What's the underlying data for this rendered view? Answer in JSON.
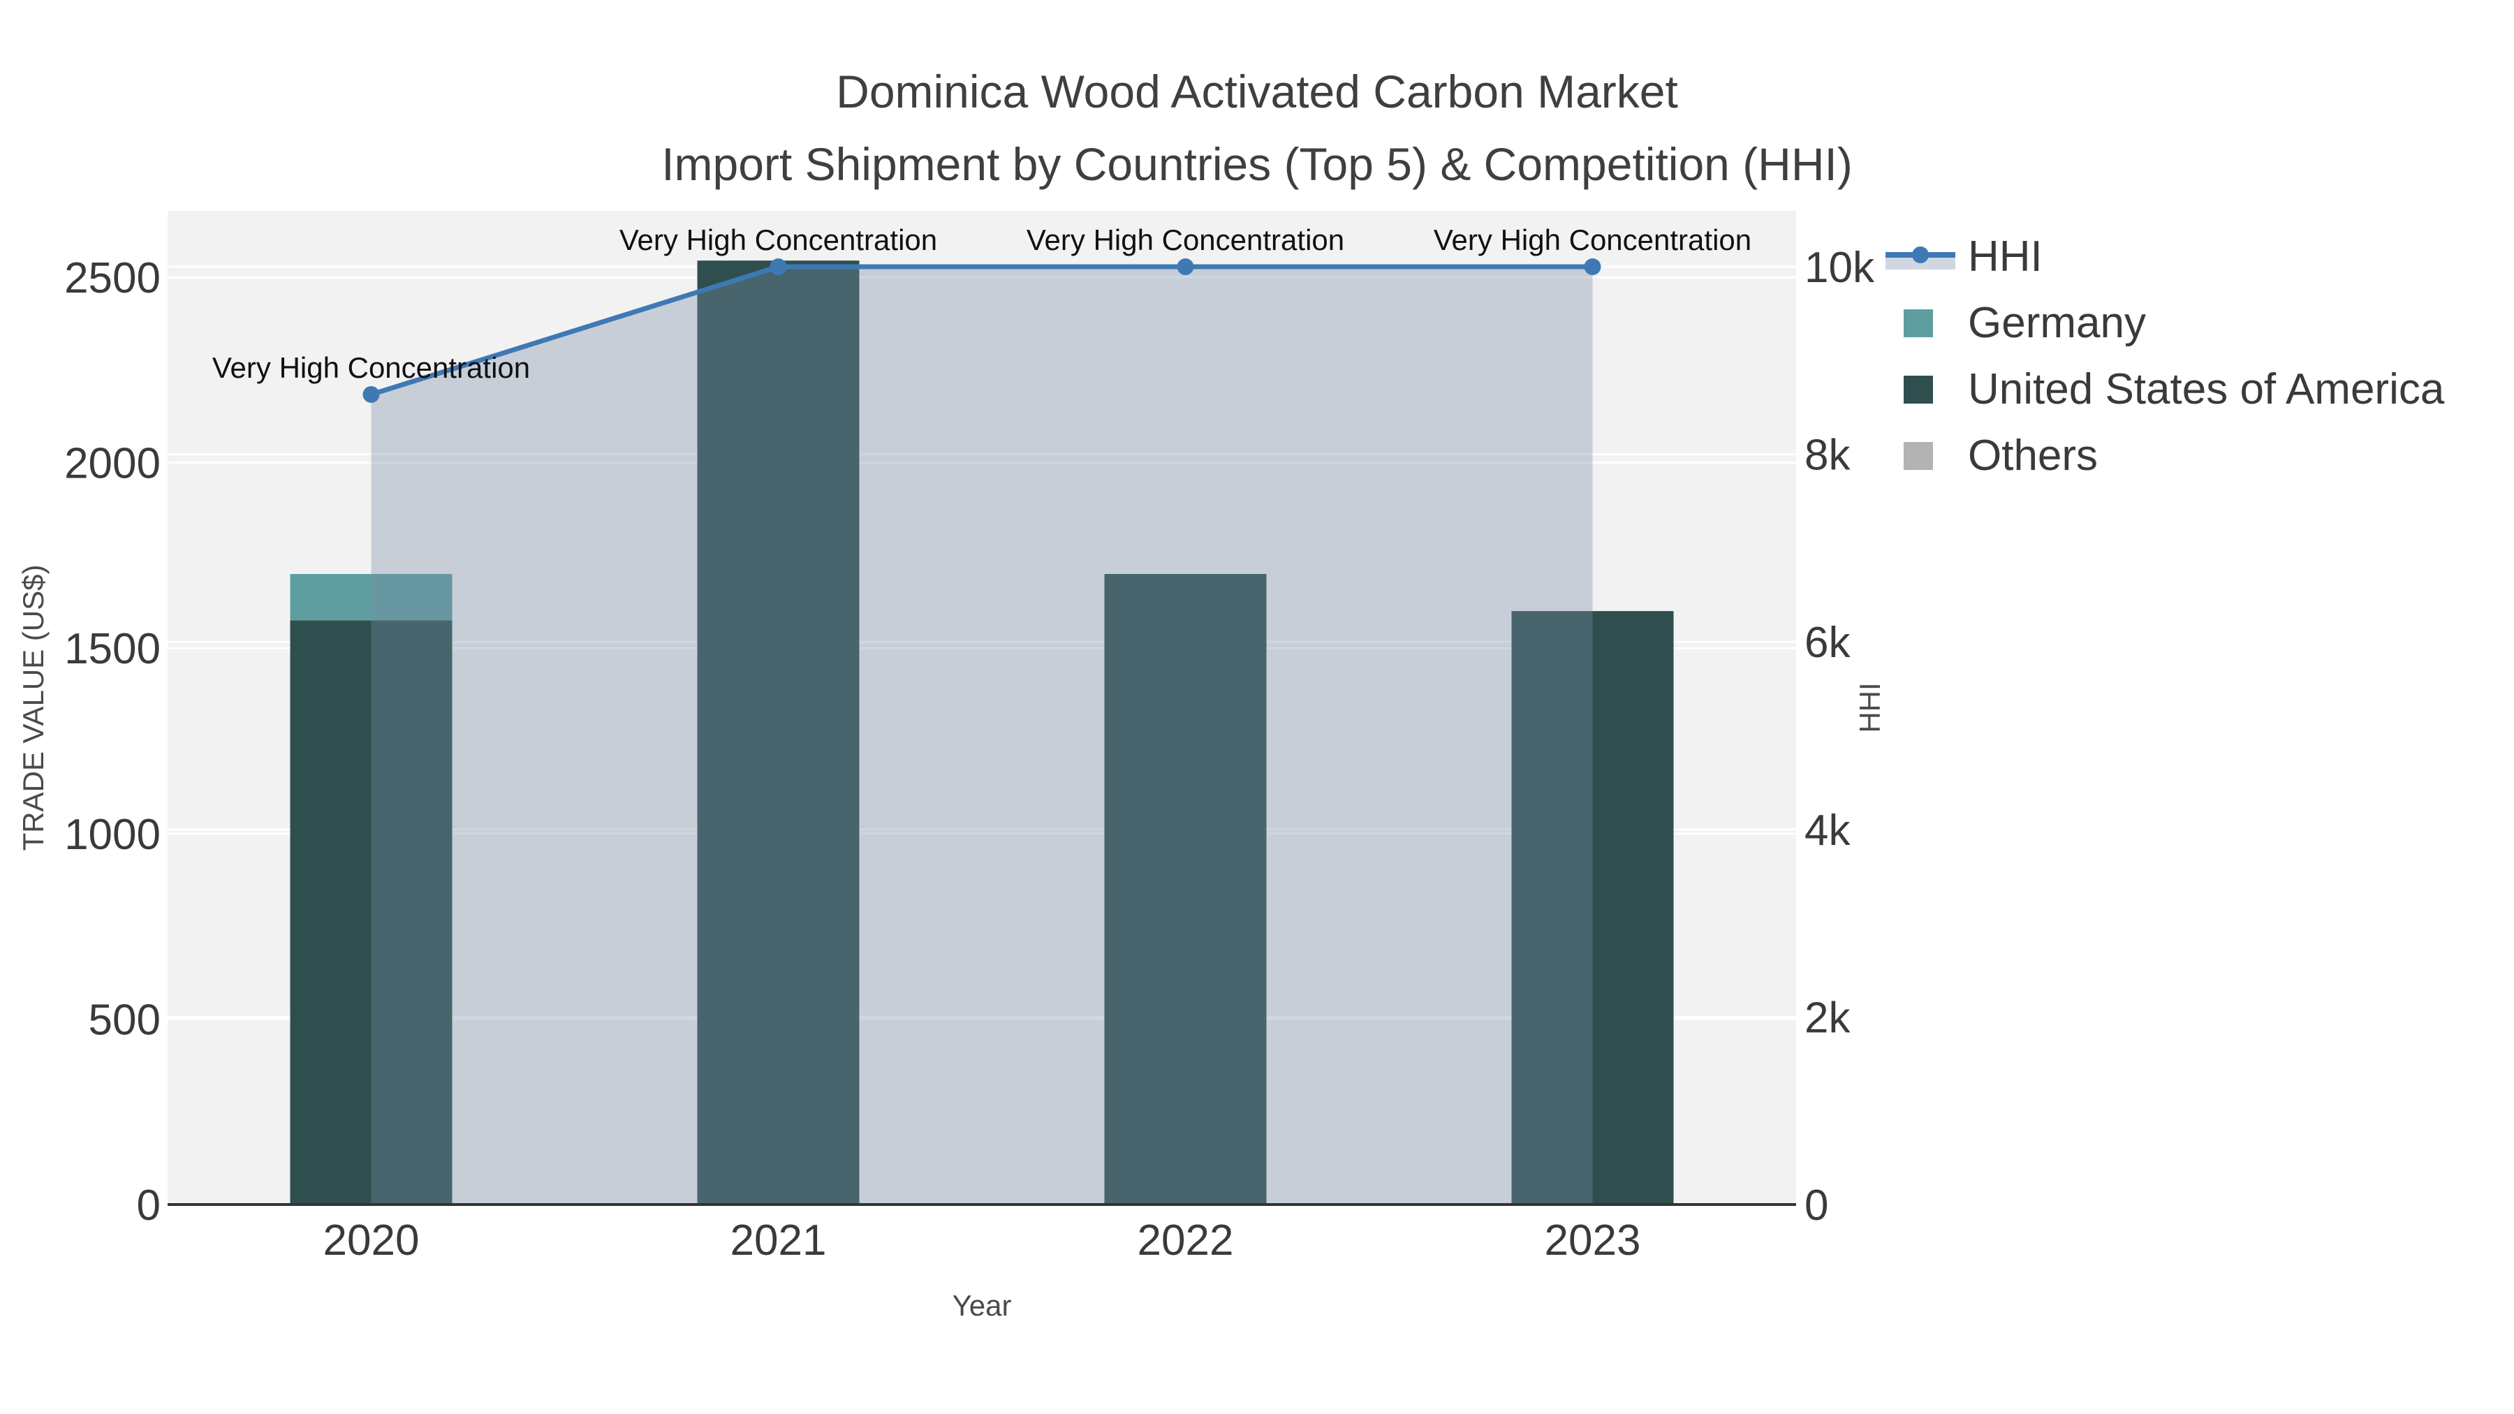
{
  "title": {
    "line1": "Dominica Wood Activated Carbon Market",
    "line2": "Import Shipment by Countries (Top 5) & Competition (HHI)"
  },
  "chart_data": {
    "type": "bar",
    "subtype": "stacked-bars-with-line-area",
    "categories": [
      "2020",
      "2021",
      "2022",
      "2023"
    ],
    "bar_series": [
      {
        "name": "United States of America",
        "color": "#2F4F4F",
        "values": [
          1575,
          2545,
          1700,
          1600
        ]
      },
      {
        "name": "Germany",
        "color": "#5F9EA0",
        "values": [
          125,
          0,
          0,
          0
        ]
      },
      {
        "name": "Others",
        "color": "#b3b3b3",
        "values": [
          0,
          0,
          0,
          0
        ]
      }
    ],
    "line_series": {
      "name": "HHI",
      "color": "#3E79B4",
      "area_fill": "rgba(120,140,165,0.35)",
      "values": [
        8638,
        10000,
        10000,
        10000
      ]
    },
    "annotations": [
      {
        "text": "Very High Concentration"
      },
      {
        "text": "Very High Concentration"
      },
      {
        "text": "Very High Concentration"
      },
      {
        "text": "Very High Concentration"
      }
    ],
    "left_axis": {
      "title": "TRADE VALUE (US$)",
      "max": 2679,
      "ticks": [
        {
          "value": 0,
          "label": "0"
        },
        {
          "value": 500,
          "label": "500"
        },
        {
          "value": 1000,
          "label": "1000"
        },
        {
          "value": 1500,
          "label": "1500"
        },
        {
          "value": 2000,
          "label": "2000"
        },
        {
          "value": 2500,
          "label": "2500"
        }
      ]
    },
    "right_axis": {
      "title": "HHI",
      "max": 10596,
      "ticks": [
        {
          "value": 0,
          "label": "0"
        },
        {
          "value": 2000,
          "label": "2k"
        },
        {
          "value": 4000,
          "label": "4k"
        },
        {
          "value": 6000,
          "label": "6k"
        },
        {
          "value": 8000,
          "label": "8k"
        },
        {
          "value": 10000,
          "label": "10k"
        }
      ]
    },
    "x_axis": {
      "title": "Year"
    },
    "colors": {
      "plot_bg": "#f2f2f2",
      "grid": "#ffffff",
      "axis_line": "#333333",
      "tick_text": "#3a3a3a",
      "axis_title_text": "#4a4a4a",
      "annotation_text": "#111111"
    },
    "legend_position": "right"
  },
  "legend": {
    "items": [
      {
        "label": "HHI",
        "type": "line",
        "color": "#3E79B4",
        "band": "#d0d7e0"
      },
      {
        "label": "Germany",
        "type": "swatch",
        "color": "#5F9EA0"
      },
      {
        "label": "United States of America",
        "type": "swatch",
        "color": "#2F4F4F"
      },
      {
        "label": "Others",
        "type": "swatch",
        "color": "#b3b3b3"
      }
    ]
  }
}
